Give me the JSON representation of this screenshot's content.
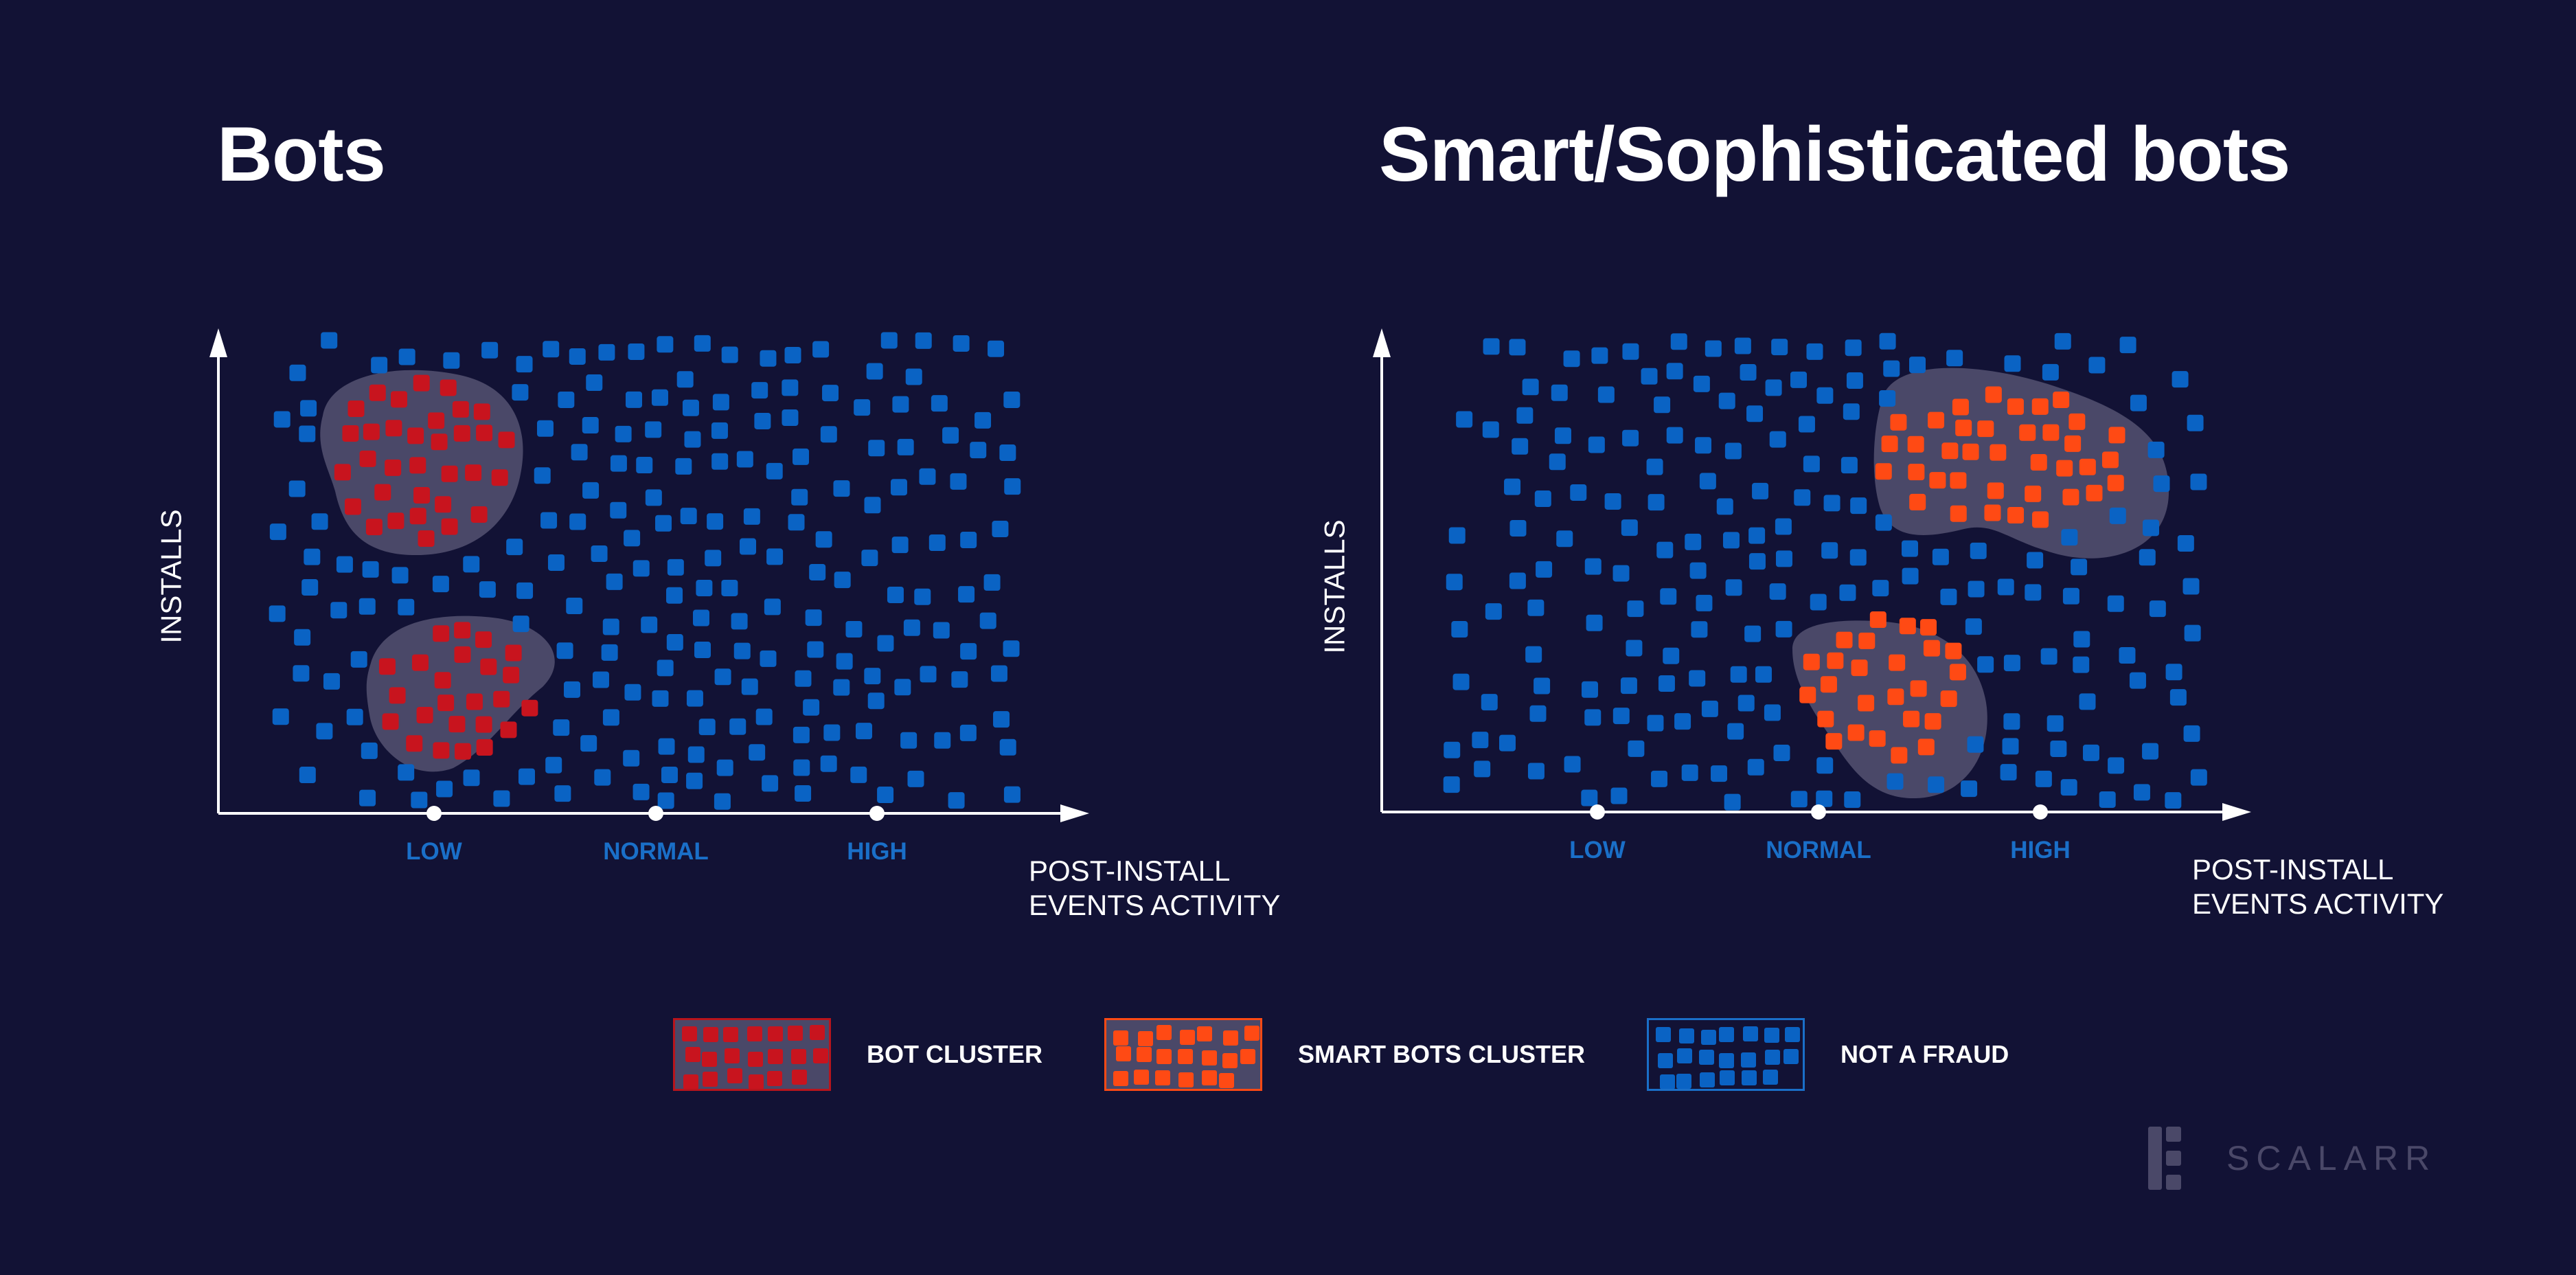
{
  "chart_data": [
    {
      "type": "scatter",
      "title": "Bots",
      "ylabel": "INSTALLS",
      "xlabel": [
        "POST-INSTALL",
        "EVENTS ACTIVITY"
      ],
      "x_ticks": [
        "LOW",
        "NORMAL",
        "HIGH"
      ],
      "clusters": [
        {
          "legend": "BOT CLUSTER",
          "region": "upper-left",
          "approx_points": 48
        },
        {
          "legend": "BOT CLUSTER",
          "region": "lower-left",
          "approx_points": 24
        }
      ],
      "not_fraud": {
        "spread": "low to high activity, concentrated around normal",
        "approx_points": 210
      }
    },
    {
      "type": "scatter",
      "title": "Smart/Sophisticated bots",
      "ylabel": "INSTALLS",
      "xlabel": [
        "POST-INSTALL",
        "EVENTS ACTIVITY"
      ],
      "x_ticks": [
        "LOW",
        "NORMAL",
        "HIGH"
      ],
      "clusters": [
        {
          "legend": "SMART BOTS CLUSTER",
          "region": "upper-right",
          "approx_points": 52
        },
        {
          "legend": "SMART BOTS CLUSTER",
          "region": "center",
          "approx_points": 30
        }
      ],
      "not_fraud": {
        "spread": "low to high activity, concentrated around normal",
        "approx_points": 190
      }
    }
  ],
  "legend": [
    {
      "label": "BOT CLUSTER",
      "color": "#c8141e",
      "border": "#b8141c"
    },
    {
      "label": "SMART BOTS CLUSTER",
      "color": "#ff4a14",
      "border": "#ff4a14"
    },
    {
      "label": "NOT A FRAUD",
      "color": "#0a63c4",
      "border": "#1a6fc8"
    }
  ],
  "colors": {
    "background": "#121235",
    "not_fraud": "#0a63c4",
    "bot": "#c8141e",
    "smart_bot": "#ff4a14",
    "blob": "#4a4868",
    "axis": "#ffffff",
    "tick_text": "#1a6fc8"
  },
  "brand": {
    "name": "SCALARR"
  }
}
